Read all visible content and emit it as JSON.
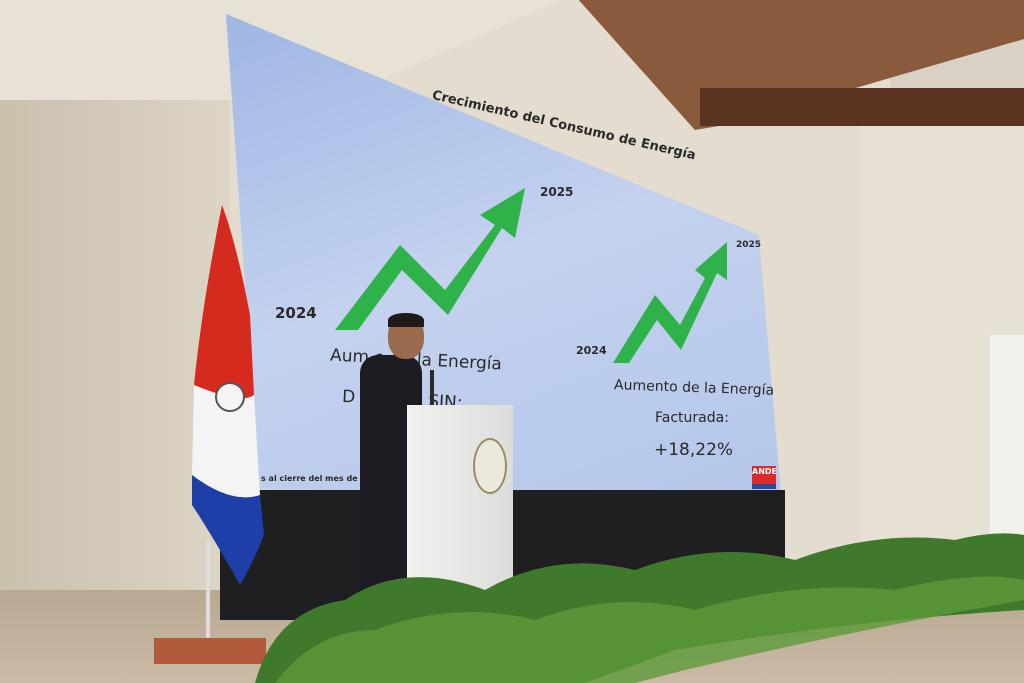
{
  "screen": {
    "title": "Crecimiento del Consumo de Energía",
    "left_panel": {
      "year_start": "2024",
      "year_end": "2025",
      "caption_line1": "Aum      o de la Energía",
      "caption_line2": "D             le en el SIN:"
    },
    "right_panel": {
      "year_start": "2024",
      "year_end": "2025",
      "caption_line1": "Aumento de la Energía",
      "caption_line2": "Facturada:",
      "value": "+18,22%"
    },
    "footnote": "s al cierre del mes de N",
    "logo": "ANDE"
  },
  "colors": {
    "arrow": "#2fb24a",
    "screen": "#b4c6ea",
    "flag_red": "#d52b1e",
    "flag_blue": "#1f3fa8"
  }
}
